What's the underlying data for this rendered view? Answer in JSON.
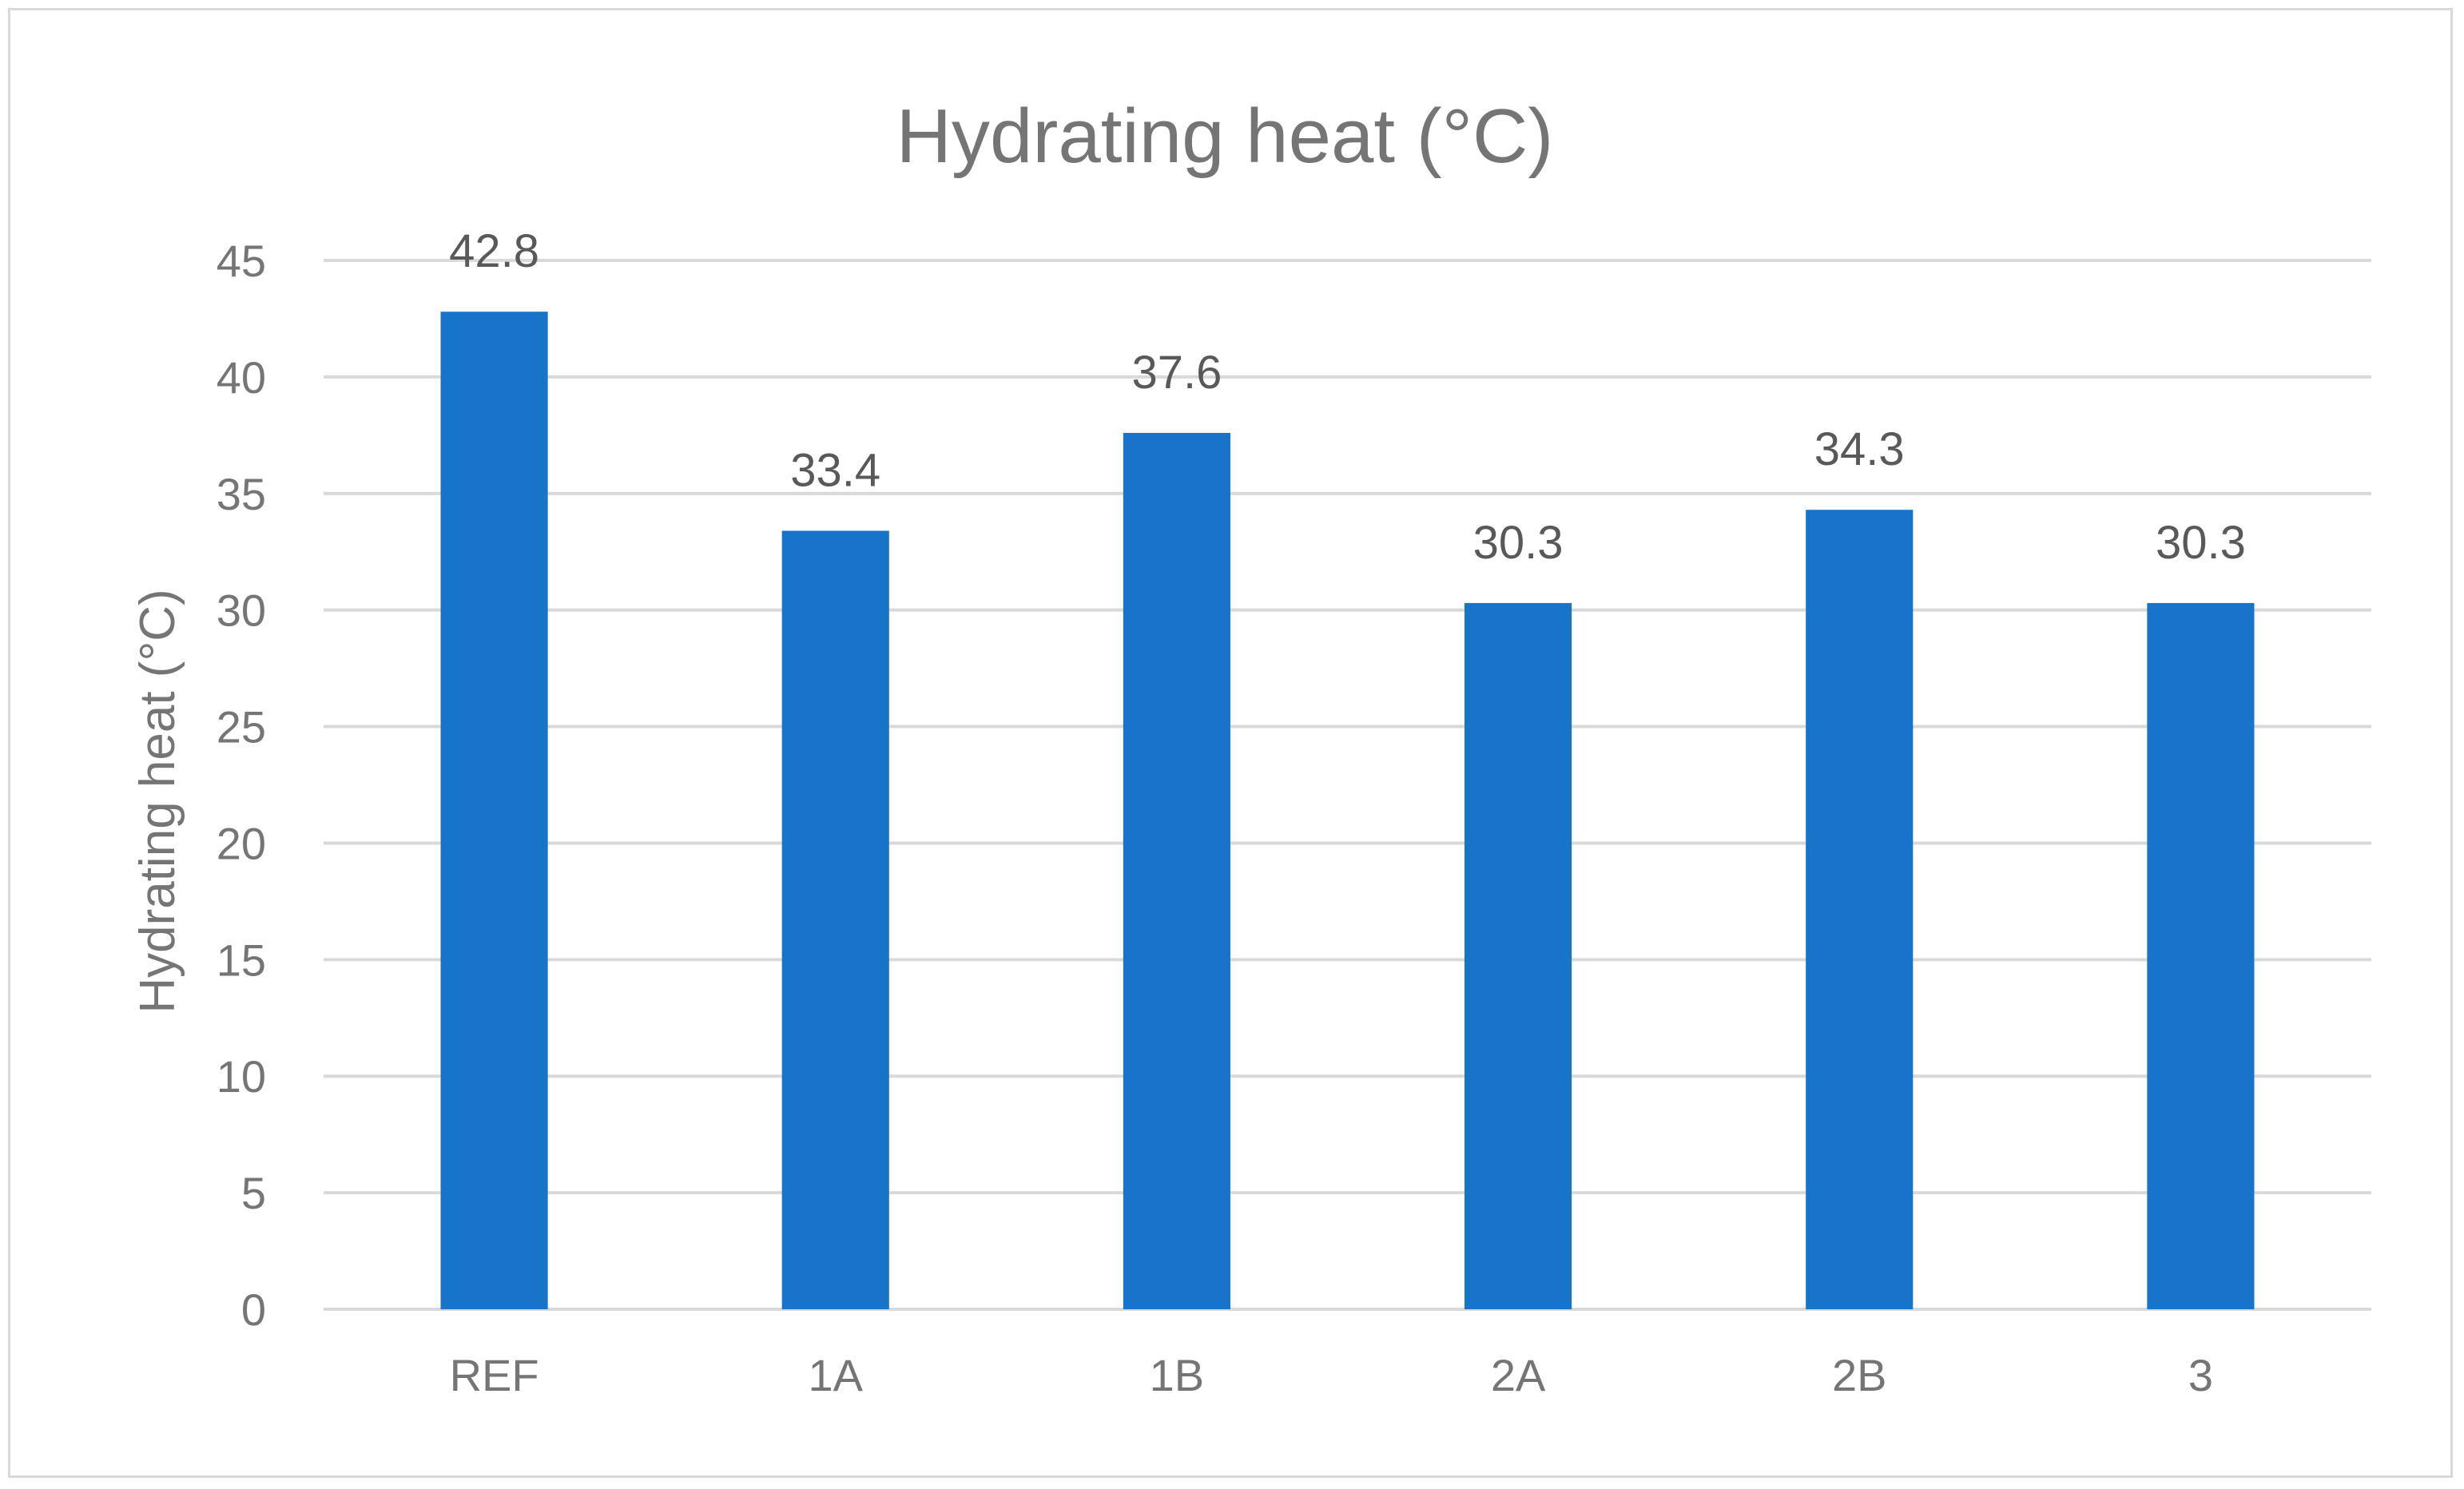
{
  "chart_data": {
    "type": "bar",
    "title": "Hydrating heat (°C)",
    "xlabel": "",
    "ylabel": "Hydrating heat (°C)",
    "categories": [
      "REF",
      "1A",
      "1B",
      "2A",
      "2B",
      "3"
    ],
    "values": [
      42.8,
      33.4,
      37.6,
      30.3,
      34.3,
      30.3
    ],
    "data_labels": [
      "42.8",
      "33.4",
      "37.6",
      "30.3",
      "34.3",
      "30.3"
    ],
    "ylim": [
      0,
      45
    ],
    "yticks": [
      0,
      5,
      10,
      15,
      20,
      25,
      30,
      35,
      40,
      45
    ],
    "ytick_labels": [
      "0",
      "5",
      "10",
      "15",
      "20",
      "25",
      "30",
      "35",
      "40",
      "45"
    ],
    "grid": true,
    "legend": "none",
    "bar_color": "#1874C9",
    "grid_color": "#D9D9D9",
    "text_color": "#757575"
  }
}
